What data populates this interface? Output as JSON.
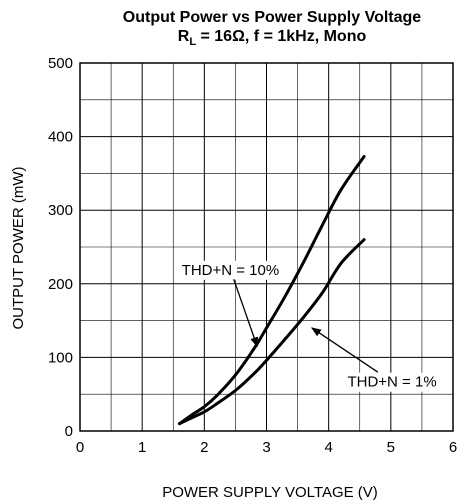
{
  "chart_data": {
    "type": "line",
    "title": "Output Power vs Power Supply Voltage",
    "subtitle": {
      "r_symbol": "R",
      "r_subscript": "L",
      "rest": " = 16Ω, f = 1kHz, Mono"
    },
    "xlabel": "POWER SUPPLY VOLTAGE (V)",
    "ylabel": "OUTPUT POWER (mW)",
    "xlim": [
      0,
      6
    ],
    "ylim": [
      0,
      500
    ],
    "x_ticks": [
      0,
      1,
      2,
      3,
      4,
      5,
      6
    ],
    "y_ticks": [
      0,
      100,
      200,
      300,
      400,
      500
    ],
    "x_minor_step": 0.5,
    "y_minor_step": 50,
    "grid": true,
    "series": [
      {
        "name": "THD+N = 10%",
        "x": [
          1.6,
          1.8,
          2.0,
          2.2,
          2.5,
          2.8,
          3.0,
          3.3,
          3.6,
          3.9,
          4.2,
          4.57
        ],
        "y": [
          10,
          22,
          33,
          48,
          76,
          112,
          140,
          183,
          230,
          280,
          328,
          373
        ]
      },
      {
        "name": "THD+N = 1%",
        "x": [
          1.6,
          1.8,
          2.0,
          2.2,
          2.5,
          2.8,
          3.0,
          3.3,
          3.6,
          3.9,
          4.2,
          4.57
        ],
        "y": [
          10,
          18,
          26,
          37,
          55,
          78,
          96,
          125,
          155,
          188,
          228,
          260
        ]
      }
    ],
    "annotations": [
      {
        "text": "THD+N = 10%",
        "series": 0,
        "text_at": [
          2.42,
          219
        ],
        "arrow_to": [
          2.85,
          115
        ]
      },
      {
        "text": "THD+N = 1%",
        "series": 1,
        "text_at": [
          5.02,
          67
        ],
        "arrow_to": [
          3.73,
          140
        ]
      }
    ]
  },
  "colors": {
    "background": "#ffffff",
    "ink": "#000000",
    "grid": "#000000"
  }
}
